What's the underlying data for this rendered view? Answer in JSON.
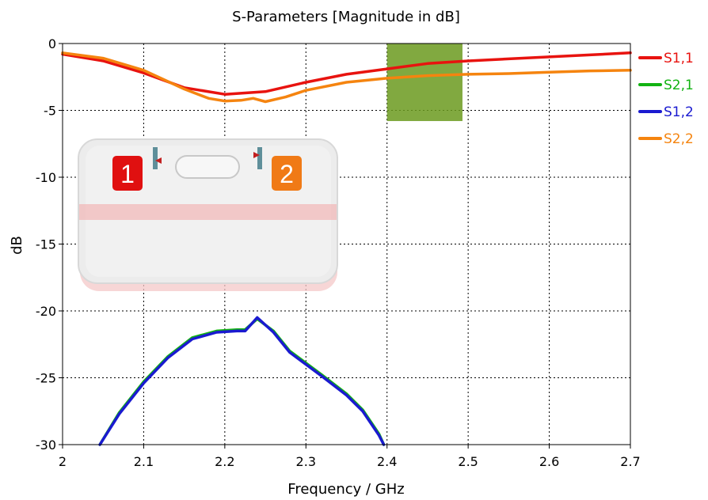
{
  "chart_data": {
    "type": "line",
    "title": "S-Parameters [Magnitude in dB]",
    "xlabel": "Frequency / GHz",
    "ylabel": "dB",
    "xlim": [
      2,
      2.7
    ],
    "ylim": [
      -30,
      0
    ],
    "x_ticks": [
      2,
      2.1,
      2.2,
      2.3,
      2.4,
      2.5,
      2.6,
      2.7
    ],
    "x_tick_labels": [
      "2",
      "2.1",
      "2.2",
      "2.3",
      "2.4",
      "2.5",
      "2.6",
      "2.7"
    ],
    "y_ticks": [
      0,
      -5,
      -10,
      -15,
      -20,
      -25,
      -30
    ],
    "y_tick_labels": [
      "0",
      "-5",
      "-10",
      "-15",
      "-20",
      "-25",
      "-30"
    ],
    "grid": true,
    "legend_position": "right",
    "highlight_band": {
      "x": [
        2.4,
        2.493
      ],
      "y": [
        -5.8,
        0
      ],
      "color": "#6b9a1f"
    },
    "series": [
      {
        "name": "S1,1",
        "color": "#e8130f",
        "x": [
          2.0,
          2.05,
          2.1,
          2.15,
          2.2,
          2.25,
          2.3,
          2.35,
          2.4,
          2.45,
          2.5,
          2.55,
          2.6,
          2.65,
          2.7
        ],
        "y": [
          -0.8,
          -1.3,
          -2.2,
          -3.3,
          -3.8,
          -3.6,
          -2.9,
          -2.3,
          -1.9,
          -1.5,
          -1.3,
          -1.15,
          -1.0,
          -0.85,
          -0.7
        ]
      },
      {
        "name": "S2,1",
        "color": "#12b312",
        "x": [
          2.046,
          2.07,
          2.1,
          2.13,
          2.16,
          2.19,
          2.215,
          2.225,
          2.24,
          2.26,
          2.28,
          2.3,
          2.32,
          2.35,
          2.37,
          2.39,
          2.396
        ],
        "y": [
          -30,
          -27.6,
          -25.3,
          -23.4,
          -22.0,
          -21.5,
          -21.4,
          -21.4,
          -20.6,
          -21.5,
          -23.0,
          -23.9,
          -24.8,
          -26.2,
          -27.4,
          -29.2,
          -30
        ]
      },
      {
        "name": "S1,2",
        "color": "#1a1ad0",
        "x": [
          2.046,
          2.07,
          2.1,
          2.13,
          2.16,
          2.19,
          2.215,
          2.225,
          2.24,
          2.26,
          2.28,
          2.3,
          2.32,
          2.35,
          2.37,
          2.39,
          2.396
        ],
        "y": [
          -30,
          -27.7,
          -25.4,
          -23.5,
          -22.1,
          -21.6,
          -21.5,
          -21.5,
          -20.5,
          -21.6,
          -23.1,
          -24.0,
          -24.9,
          -26.3,
          -27.5,
          -29.3,
          -30
        ]
      },
      {
        "name": "S2,2",
        "color": "#f5840f",
        "x": [
          2.0,
          2.05,
          2.1,
          2.15,
          2.18,
          2.2,
          2.22,
          2.235,
          2.25,
          2.275,
          2.3,
          2.35,
          2.4,
          2.45,
          2.5,
          2.55,
          2.6,
          2.65,
          2.7
        ],
        "y": [
          -0.7,
          -1.1,
          -2.0,
          -3.4,
          -4.1,
          -4.3,
          -4.25,
          -4.1,
          -4.35,
          -4.0,
          -3.5,
          -2.9,
          -2.6,
          -2.4,
          -2.3,
          -2.25,
          -2.15,
          -2.05,
          -2.0
        ]
      }
    ]
  },
  "inset": {
    "port1_label": "1",
    "port2_label": "2",
    "port1_color": "#e01010",
    "port2_color": "#f07a16"
  }
}
